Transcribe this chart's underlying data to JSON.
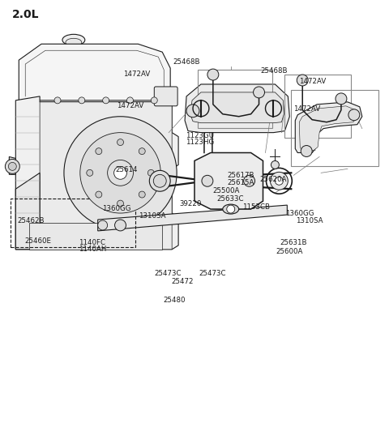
{
  "title": "2.0L",
  "bg_color": "#ffffff",
  "line_color": "#1a1a1a",
  "title_fontsize": 10,
  "label_fontsize": 6.2,
  "labels": {
    "25468B_top": [
      0.445,
      0.862,
      "25468B"
    ],
    "1472AV_top1": [
      0.315,
      0.833,
      "1472AV"
    ],
    "1472AV_top2": [
      0.298,
      0.762,
      "1472AV"
    ],
    "25468B_right": [
      0.67,
      0.84,
      "25468B"
    ],
    "1472AV_r1": [
      0.77,
      0.817,
      "1472AV"
    ],
    "1472AV_r2": [
      0.755,
      0.754,
      "1472AV"
    ],
    "1123GU": [
      0.478,
      0.693,
      "1123GU"
    ],
    "1123HG": [
      0.478,
      0.677,
      "1123HG"
    ],
    "25614": [
      0.295,
      0.614,
      "25614"
    ],
    "25617B": [
      0.585,
      0.601,
      "25617B"
    ],
    "25615A": [
      0.585,
      0.585,
      "25615A"
    ],
    "25620A": [
      0.668,
      0.592,
      "25620A"
    ],
    "25500A": [
      0.547,
      0.566,
      "25500A"
    ],
    "25633C": [
      0.558,
      0.548,
      "25633C"
    ],
    "39220": [
      0.46,
      0.537,
      "39220"
    ],
    "1153CB": [
      0.624,
      0.53,
      "1153CB"
    ],
    "1360GG_left": [
      0.261,
      0.526,
      "1360GG"
    ],
    "1310SA_left": [
      0.355,
      0.509,
      "1310SA"
    ],
    "1360GG_right": [
      0.735,
      0.515,
      "1360GG"
    ],
    "1310SA_right": [
      0.762,
      0.498,
      "1310SA"
    ],
    "25462B": [
      0.042,
      0.499,
      "25462B"
    ],
    "25460E": [
      0.06,
      0.452,
      "25460E"
    ],
    "1140FC": [
      0.2,
      0.449,
      "1140FC"
    ],
    "1140AH": [
      0.2,
      0.433,
      "1140AH"
    ],
    "25473C_left": [
      0.395,
      0.378,
      "25473C"
    ],
    "25473C_right": [
      0.512,
      0.378,
      "25473C"
    ],
    "25472": [
      0.44,
      0.36,
      "25472"
    ],
    "25480": [
      0.42,
      0.316,
      "25480"
    ],
    "25631B": [
      0.72,
      0.448,
      "25631B"
    ],
    "25600A": [
      0.71,
      0.427,
      "25600A"
    ]
  }
}
